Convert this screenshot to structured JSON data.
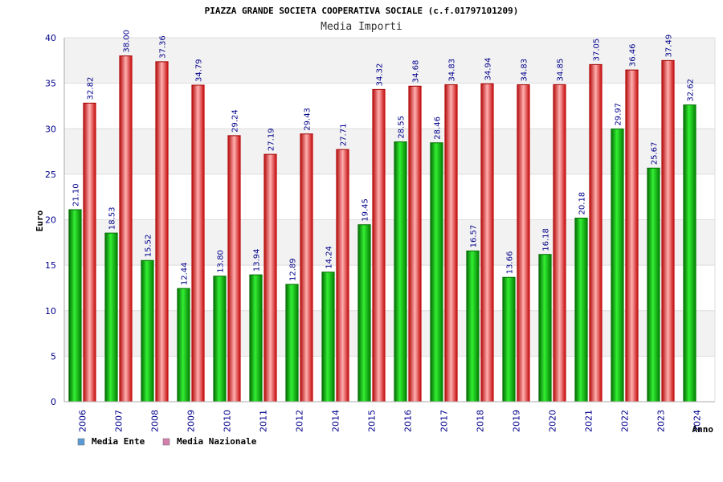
{
  "chart_data": {
    "type": "bar",
    "title": "PIAZZA GRANDE SOCIETA COOPERATIVA SOCIALE (c.f.01797101209)",
    "subtitle": "Media Importi",
    "xlabel": "Anno",
    "ylabel": "Euro",
    "ylim": [
      0,
      40
    ],
    "yticks": [
      0,
      5,
      10,
      15,
      20,
      25,
      30,
      35,
      40
    ],
    "grid": true,
    "legend_position": "bottom-left",
    "categories": [
      "2006",
      "2007",
      "2008",
      "2009",
      "2010",
      "2011",
      "2012",
      "2014",
      "2015",
      "2016",
      "2017",
      "2018",
      "2019",
      "2020",
      "2021",
      "2022",
      "2023",
      "2024"
    ],
    "series": [
      {
        "name": "Media Ente",
        "color": "#00a000",
        "legend_color": "#5b9bd5",
        "values": [
          21.1,
          18.53,
          15.52,
          12.44,
          13.8,
          13.94,
          12.89,
          14.24,
          19.45,
          28.55,
          28.46,
          16.57,
          13.66,
          16.18,
          20.18,
          29.97,
          25.67,
          32.62
        ],
        "labels": [
          "21.10",
          "18.53",
          "15.52",
          "12.44",
          "13.80",
          "13.94",
          "12.89",
          "14.24",
          "19.45",
          "28.55",
          "28.46",
          "16.57",
          "13.66",
          "16.18",
          "20.18",
          "29.97",
          "25.67",
          "32.62"
        ]
      },
      {
        "name": "Media Nazionale",
        "color": "#e00000",
        "legend_color": "#d67fae",
        "values": [
          32.82,
          38.0,
          37.36,
          34.79,
          29.24,
          27.19,
          29.43,
          27.71,
          34.32,
          34.68,
          34.83,
          34.94,
          34.83,
          34.85,
          37.05,
          36.46,
          37.49,
          null
        ],
        "labels": [
          "32.82",
          "38.00",
          "37.36",
          "34.79",
          "29.24",
          "27.19",
          "29.43",
          "27.71",
          "34.32",
          "34.68",
          "34.83",
          "34.94",
          "34.83",
          "34.85",
          "37.05",
          "36.46",
          "37.49",
          null
        ]
      }
    ]
  }
}
